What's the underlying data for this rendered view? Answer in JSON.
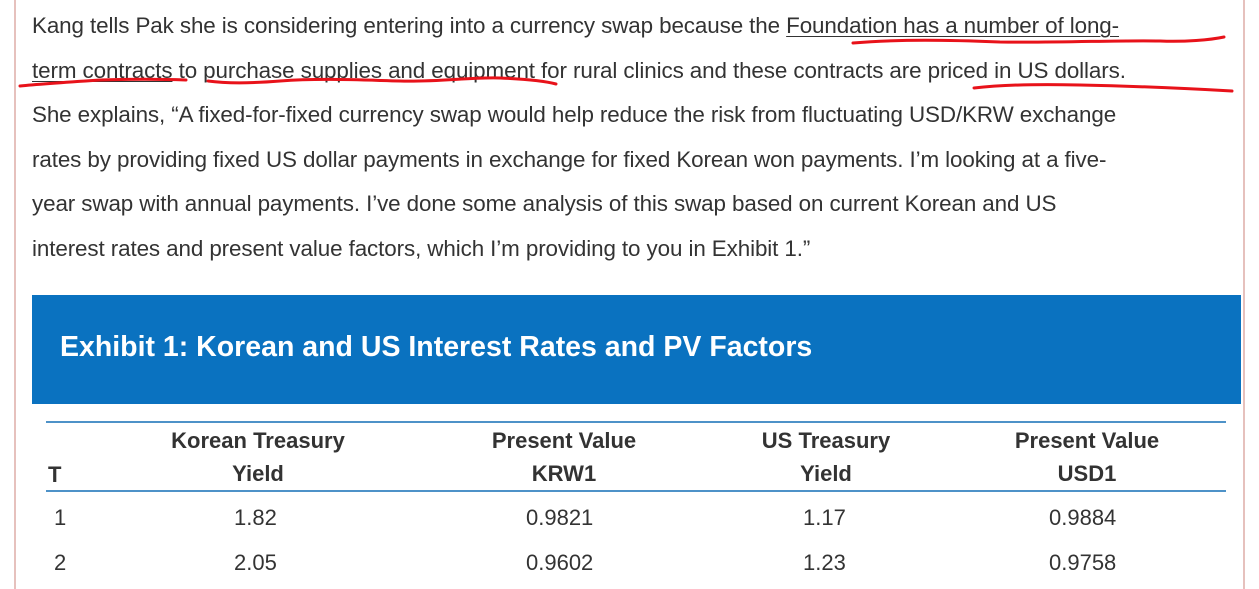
{
  "paragraph": {
    "line1_a": "Kang tells Pak she is considering entering into a currency swap because the ",
    "line1_b": "Foundation has a number of long-",
    "line2_a": "term contracts",
    "line2_b": " to purchase supplies and equipment for rural clinics and these contracts are priced in US dollars.",
    "line3": "She explains, “A fixed-for-fixed currency swap would help reduce the risk from fluctuating USD/KRW exchange",
    "line4": "rates by providing fixed US dollar payments in exchange for fixed Korean won payments. I’m looking at a five-",
    "line5": "year swap with annual payments. I’ve done some analysis of this swap based on current Korean and US",
    "line6": "interest rates and present value factors, which I’m providing to you in Exhibit 1.”"
  },
  "exhibit": {
    "title": "Exhibit 1: Korean and US Interest Rates and PV Factors",
    "headers": {
      "t": "T",
      "korean_yield_1": "Korean Treasury",
      "korean_yield_2": "Yield",
      "pv_krw_1": "Present Value",
      "pv_krw_2": "KRW1",
      "us_yield_1": "US Treasury",
      "us_yield_2": "Yield",
      "pv_usd_1": "Present Value",
      "pv_usd_2": "USD1"
    },
    "rows": [
      {
        "t": "1",
        "korean_yield": "1.82",
        "pv_krw": "0.9821",
        "us_yield": "1.17",
        "pv_usd": "0.9884"
      },
      {
        "t": "2",
        "korean_yield": "2.05",
        "pv_krw": "0.9602",
        "us_yield": "1.23",
        "pv_usd": "0.9758"
      }
    ]
  },
  "colors": {
    "banner": "#0a72c0",
    "rule": "#4e92c8",
    "annotation": "#e8121a",
    "text": "#333333"
  }
}
